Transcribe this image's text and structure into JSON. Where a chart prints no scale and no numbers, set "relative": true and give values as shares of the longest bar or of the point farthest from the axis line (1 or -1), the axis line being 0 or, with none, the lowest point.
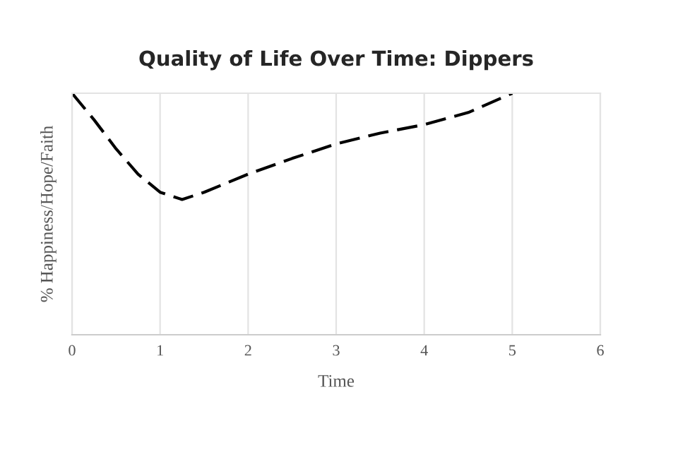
{
  "chart_data": {
    "type": "line",
    "title": "Quality of Life Over Time: Dippers",
    "xlabel": "Time",
    "ylabel": "% Happiness/Hope/Faith",
    "relative": true,
    "x": [
      0,
      0.25,
      0.5,
      0.75,
      1,
      1.25,
      1.5,
      2,
      2.5,
      3,
      3.5,
      4,
      4.5,
      5
    ],
    "series": [
      {
        "color": "#000000",
        "values": [
          1,
          0.89,
          0.77,
          0.665,
          0.59,
          0.56,
          0.59,
          0.665,
          0.73,
          0.79,
          0.835,
          0.87,
          0.92,
          1
        ]
      }
    ],
    "xlim": [
      0,
      6
    ],
    "xticks": [
      0,
      1,
      2,
      3,
      4,
      5,
      6
    ],
    "grid": "x",
    "line_style": "dashed",
    "legend": false
  }
}
